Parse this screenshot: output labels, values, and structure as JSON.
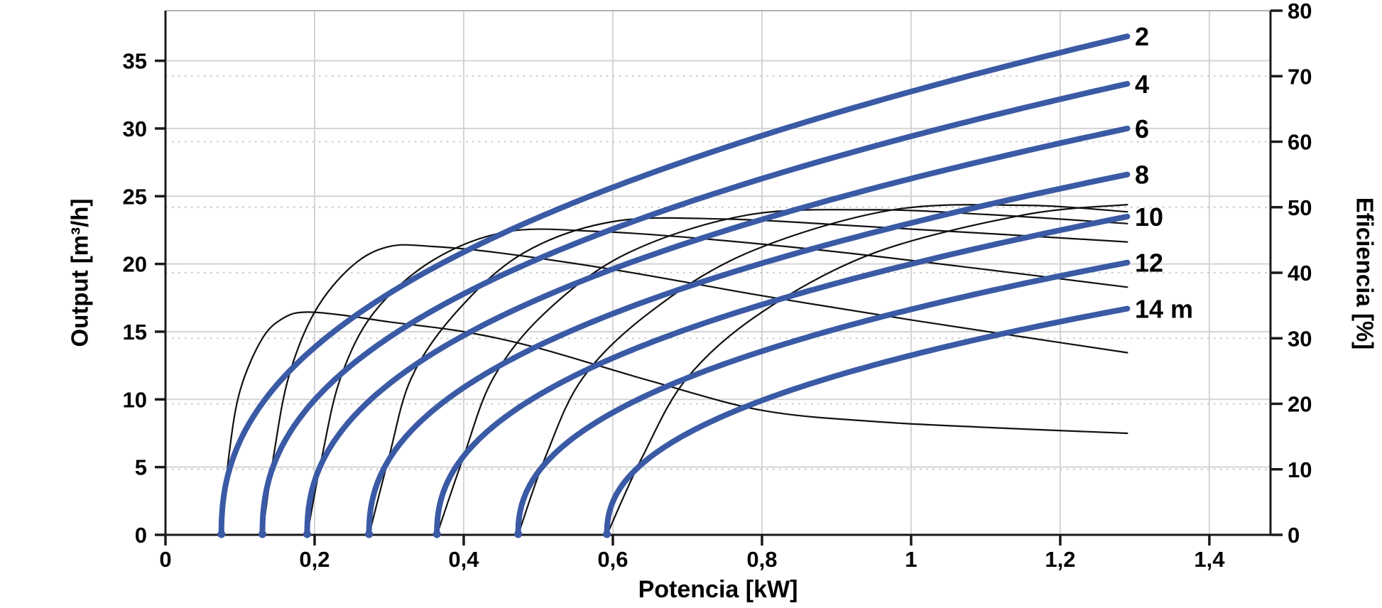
{
  "chart_data": {
    "type": "line",
    "title": "",
    "xlabel": "Potencia [kW]",
    "ylabel_left": "Output [m³/h]",
    "ylabel_right": "Eficiencia [%]",
    "xlim": [
      0,
      1.482
    ],
    "ylim_left": [
      0,
      38.7
    ],
    "ylim_right": [
      0,
      80
    ],
    "grid": {
      "vertical": "solid",
      "horizontal_left_axis": "solid",
      "horizontal_right_axis": "dotted"
    },
    "legend_position": "right-end-of-curves",
    "colors": {
      "pump_curve": "#3a5aa5",
      "efficiency_curve": "#111111",
      "grid_solid": "#d4d4d4",
      "grid_dotted": "#c9c9c9",
      "axis_frame": "#1a1a1a",
      "top_frame": "#b3b3b3",
      "background": "#ffffff"
    },
    "x_ticks": [
      {
        "v": 0,
        "label": "0"
      },
      {
        "v": 0.2,
        "label": "0,2"
      },
      {
        "v": 0.4,
        "label": "0,4"
      },
      {
        "v": 0.6,
        "label": "0,6"
      },
      {
        "v": 0.8,
        "label": "0,8"
      },
      {
        "v": 1.0,
        "label": "1"
      },
      {
        "v": 1.2,
        "label": "1,2"
      },
      {
        "v": 1.4,
        "label": "1,4"
      }
    ],
    "y_left_ticks": [
      {
        "v": 0,
        "label": "0"
      },
      {
        "v": 5,
        "label": "5"
      },
      {
        "v": 10,
        "label": "10"
      },
      {
        "v": 15,
        "label": "15"
      },
      {
        "v": 20,
        "label": "20"
      },
      {
        "v": 25,
        "label": "25"
      },
      {
        "v": 30,
        "label": "30"
      },
      {
        "v": 35,
        "label": "35"
      }
    ],
    "y_right_ticks": [
      {
        "v": 0,
        "label": "0"
      },
      {
        "v": 10,
        "label": "10"
      },
      {
        "v": 20,
        "label": "20"
      },
      {
        "v": 30,
        "label": "30"
      },
      {
        "v": 40,
        "label": "40"
      },
      {
        "v": 50,
        "label": "50"
      },
      {
        "v": 60,
        "label": "60"
      },
      {
        "v": 70,
        "label": "70"
      },
      {
        "v": 80,
        "label": "80"
      }
    ],
    "pump_curves": {
      "unit": "head in m, Q = q_end * ((P-p_start)/(p_end-p_start))^exponent",
      "p_end": 1.29,
      "exponent": 0.43,
      "series": [
        {
          "label": "2",
          "head_m": 2,
          "p_start": 0.075,
          "q_end": 36.8
        },
        {
          "label": "4",
          "head_m": 4,
          "p_start": 0.13,
          "q_end": 33.3
        },
        {
          "label": "6",
          "head_m": 6,
          "p_start": 0.19,
          "q_end": 30.0
        },
        {
          "label": "8",
          "head_m": 8,
          "p_start": 0.273,
          "q_end": 26.6
        },
        {
          "label": "10",
          "head_m": 10,
          "p_start": 0.364,
          "q_end": 23.5
        },
        {
          "label": "12",
          "head_m": 12,
          "p_start": 0.473,
          "q_end": 20.1
        },
        {
          "label": "14 m",
          "head_m": 14,
          "p_start": 0.592,
          "q_end": 16.7
        }
      ]
    },
    "efficiency_curves": {
      "unit": "points are [P kW, efficiency %] on right axis",
      "series": [
        {
          "head_m": 2,
          "points": [
            [
              0.075,
              0
            ],
            [
              0.085,
              12
            ],
            [
              0.1,
              22
            ],
            [
              0.13,
              30
            ],
            [
              0.16,
              33.2
            ],
            [
              0.19,
              34
            ],
            [
              0.24,
              33.5
            ],
            [
              0.3,
              32.5
            ],
            [
              0.4,
              31
            ],
            [
              0.5,
              28.5
            ],
            [
              0.65,
              23.5
            ],
            [
              0.8,
              19
            ],
            [
              0.95,
              17.3
            ],
            [
              1.1,
              16.4
            ],
            [
              1.29,
              15.5
            ]
          ]
        },
        {
          "head_m": 4,
          "points": [
            [
              0.13,
              0
            ],
            [
              0.145,
              12
            ],
            [
              0.165,
              24
            ],
            [
              0.2,
              34
            ],
            [
              0.25,
              41
            ],
            [
              0.3,
              44
            ],
            [
              0.36,
              44
            ],
            [
              0.45,
              43
            ],
            [
              0.6,
              40.5
            ],
            [
              0.8,
              36.5
            ],
            [
              1.0,
              32.8
            ],
            [
              1.15,
              30.2
            ],
            [
              1.29,
              27.8
            ]
          ]
        },
        {
          "head_m": 6,
          "points": [
            [
              0.19,
              0
            ],
            [
              0.21,
              12
            ],
            [
              0.235,
              24
            ],
            [
              0.28,
              34
            ],
            [
              0.36,
              42
            ],
            [
              0.46,
              46.3
            ],
            [
              0.58,
              46.3
            ],
            [
              0.72,
              45.2
            ],
            [
              0.9,
              43.2
            ],
            [
              1.1,
              40.5
            ],
            [
              1.29,
              37.8
            ]
          ]
        },
        {
          "head_m": 8,
          "points": [
            [
              0.273,
              0
            ],
            [
              0.3,
              12
            ],
            [
              0.33,
              24
            ],
            [
              0.39,
              34
            ],
            [
              0.48,
              43
            ],
            [
              0.6,
              47.8
            ],
            [
              0.75,
              48.2
            ],
            [
              0.92,
              47.2
            ],
            [
              1.1,
              46
            ],
            [
              1.29,
              44.7
            ]
          ]
        },
        {
          "head_m": 10,
          "points": [
            [
              0.364,
              0
            ],
            [
              0.4,
              12
            ],
            [
              0.44,
              24
            ],
            [
              0.51,
              34
            ],
            [
              0.62,
              43
            ],
            [
              0.78,
              48.8
            ],
            [
              0.95,
              49.6
            ],
            [
              1.1,
              48.9
            ],
            [
              1.29,
              47.5
            ]
          ]
        },
        {
          "head_m": 12,
          "points": [
            [
              0.473,
              0
            ],
            [
              0.51,
              12
            ],
            [
              0.56,
              24
            ],
            [
              0.65,
              34
            ],
            [
              0.78,
              43
            ],
            [
              0.97,
              49.5
            ],
            [
              1.15,
              50.3
            ],
            [
              1.29,
              49.3
            ]
          ]
        },
        {
          "head_m": 14,
          "points": [
            [
              0.592,
              0
            ],
            [
              0.64,
              12
            ],
            [
              0.7,
              24
            ],
            [
              0.8,
              34
            ],
            [
              0.95,
              43
            ],
            [
              1.15,
              48.8
            ],
            [
              1.29,
              50.4
            ]
          ]
        }
      ]
    }
  }
}
